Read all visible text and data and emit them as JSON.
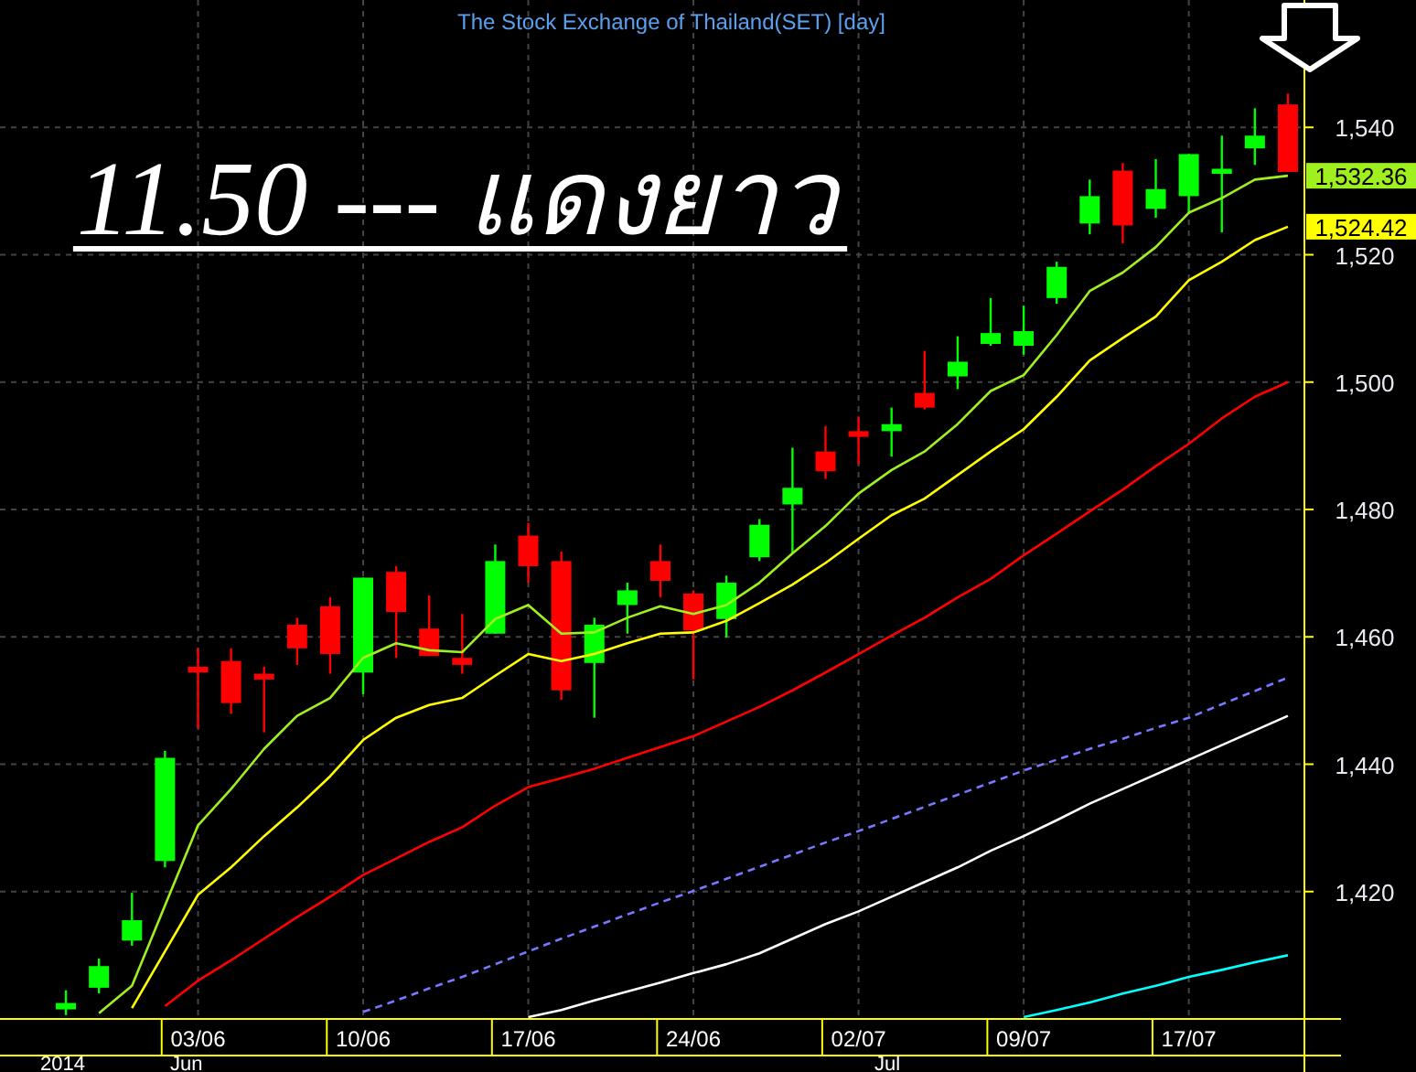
{
  "chart_data": {
    "type": "candlestick",
    "title": "The Stock Exchange of Thailand(SET) [day]",
    "categories": [
      null,
      null,
      null,
      null,
      "03/06",
      null,
      null,
      null,
      null,
      "10/06",
      null,
      null,
      null,
      null,
      "17/06",
      null,
      null,
      null,
      null,
      "24/06",
      null,
      null,
      null,
      null,
      "02/07",
      null,
      null,
      null,
      null,
      "09/07",
      null,
      null,
      null,
      null,
      "17/07",
      null,
      null,
      null
    ],
    "ohlc": [
      [
        1401.5,
        1404.5,
        1400.6,
        1402.5
      ],
      [
        1404.9,
        1409.5,
        1404,
        1408.3
      ],
      [
        1412.3,
        1419.8,
        1411.5,
        1415.5
      ],
      [
        1424.8,
        1442.1,
        1423.8,
        1441
      ],
      [
        1455.3,
        1458.2,
        1445.6,
        1454.4
      ],
      [
        1456.2,
        1458.2,
        1447.9,
        1449.6
      ],
      [
        1454.2,
        1455.3,
        1445,
        1453.3
      ],
      [
        1461.9,
        1463,
        1455.6,
        1458.2
      ],
      [
        1464.8,
        1466.2,
        1454.2,
        1457.3
      ],
      [
        1454.4,
        1469.3,
        1451,
        1469.3
      ],
      [
        1470.2,
        1471.1,
        1456.7,
        1463.9
      ],
      [
        1461.3,
        1466.5,
        1457,
        1457
      ],
      [
        1456.7,
        1463.6,
        1454.2,
        1455.6
      ],
      [
        1460.5,
        1474.5,
        1460.5,
        1471.9
      ],
      [
        1475.9,
        1477.9,
        1468.5,
        1471.1
      ],
      [
        1471.9,
        1473.4,
        1450.1,
        1451.6
      ],
      [
        1455.9,
        1463,
        1447.3,
        1461.9
      ],
      [
        1465,
        1468.5,
        1460.5,
        1467.3
      ],
      [
        1471.9,
        1474.5,
        1466.2,
        1468.8
      ],
      [
        1466.8,
        1467.3,
        1453.3,
        1461
      ],
      [
        1462.8,
        1469.6,
        1459.9,
        1468.5
      ],
      [
        1472.5,
        1478.5,
        1471.9,
        1477.6
      ],
      [
        1480.8,
        1489.7,
        1473.1,
        1483.4
      ],
      [
        1489.1,
        1493.1,
        1484.8,
        1486
      ],
      [
        1492.3,
        1494.6,
        1487.1,
        1491.4
      ],
      [
        1492.3,
        1496,
        1488.3,
        1493.4
      ],
      [
        1498.3,
        1504.9,
        1495.7,
        1496
      ],
      [
        1500.9,
        1507.2,
        1498.9,
        1503.2
      ],
      [
        1506,
        1513.2,
        1505.7,
        1507.7
      ],
      [
        1505.7,
        1512,
        1504.3,
        1508
      ],
      [
        1513.2,
        1518.9,
        1512.3,
        1518.1
      ],
      [
        1524.9,
        1531.8,
        1523.2,
        1529.2
      ],
      [
        1533.2,
        1534.4,
        1521.8,
        1524.6
      ],
      [
        1527.2,
        1535,
        1525.8,
        1530.3
      ],
      [
        1529.2,
        1535.8,
        1526.4,
        1535.8
      ],
      [
        1532.7,
        1538.7,
        1523.5,
        1533.5
      ],
      [
        1536.7,
        1543,
        1534.1,
        1538.7
      ],
      [
        1543.6,
        1545.3,
        1533,
        1533
      ]
    ],
    "colors": [
      "#00ff00",
      "#00ff00",
      "#00ff00",
      "#00ff00",
      "#ff0000",
      "#ff0000",
      "#ff0000",
      "#ff0000",
      "#ff0000",
      "#00ff00",
      "#ff0000",
      "#ff0000",
      "#ff0000",
      "#00ff00",
      "#ff0000",
      "#ff0000",
      "#00ff00",
      "#00ff00",
      "#ff0000",
      "#ff0000",
      "#00ff00",
      "#00ff00",
      "#00ff00",
      "#ff0000",
      "#ff0000",
      "#00ff00",
      "#ff0000",
      "#00ff00",
      "#00ff00",
      "#00ff00",
      "#00ff00",
      "#00ff00",
      "#ff0000",
      "#00ff00",
      "#00ff00",
      "#00ff00",
      "#00ff00",
      "#ff0000"
    ],
    "series": [
      {
        "type": "line",
        "color": "#a0f020",
        "values": [
          null,
          1400.9,
          1405.2,
          1417.8,
          1430.4,
          1436.1,
          1442.4,
          1447.6,
          1450.4,
          1456.7,
          1459,
          1457.9,
          1457.6,
          1462.8,
          1465,
          1460.5,
          1460.7,
          1463,
          1464.8,
          1463.6,
          1465,
          1468.5,
          1473.1,
          1477.4,
          1482.5,
          1486.2,
          1489.1,
          1493.4,
          1498.6,
          1501.1,
          1507.4,
          1514.3,
          1517.2,
          1521.2,
          1526.6,
          1528.9,
          1531.8,
          1532.4
        ]
      },
      {
        "type": "line",
        "color": "#ffff00",
        "values": [
          null,
          null,
          1401.7,
          1410.6,
          1419.5,
          1423.8,
          1428.7,
          1433.2,
          1438.1,
          1443.8,
          1447.3,
          1449.3,
          1450.4,
          1453.9,
          1457.3,
          1456.2,
          1457.3,
          1459,
          1460.5,
          1460.7,
          1462.5,
          1465.3,
          1468.2,
          1471.6,
          1475.4,
          1479.1,
          1481.7,
          1485.4,
          1489.1,
          1492.6,
          1497.7,
          1503.4,
          1506.9,
          1510.3,
          1516,
          1518.9,
          1522.3,
          1524.4
        ]
      },
      {
        "type": "line",
        "color": "#ff0000",
        "values": [
          null,
          null,
          null,
          1402,
          1406,
          1409.2,
          1412.6,
          1416,
          1419.2,
          1422.6,
          1425.2,
          1427.8,
          1430.1,
          1433.5,
          1436.4,
          1437.8,
          1439.3,
          1441,
          1442.7,
          1444.4,
          1446.7,
          1449,
          1451.6,
          1454.4,
          1457.3,
          1460.2,
          1463,
          1466.2,
          1469.1,
          1472.8,
          1476.2,
          1479.7,
          1483.1,
          1486.8,
          1490.3,
          1494.3,
          1497.7,
          1500
        ]
      },
      {
        "type": "line",
        "color": "#7777ff",
        "line_style": "dashed",
        "values": [
          null,
          null,
          null,
          null,
          null,
          null,
          null,
          null,
          null,
          1401.1,
          1402.9,
          1404.8,
          1406.6,
          1408.6,
          1410.6,
          1412.6,
          1414.5,
          1416.4,
          1418.3,
          1420.1,
          1422,
          1423.9,
          1425.8,
          1427.7,
          1429.5,
          1431.4,
          1433.3,
          1435.2,
          1437.1,
          1439,
          1440.7,
          1442.4,
          1444,
          1445.7,
          1447.3,
          1449.4,
          1451.5,
          1453.6
        ]
      },
      {
        "type": "line",
        "color": "#ffffff",
        "values": [
          null,
          null,
          null,
          null,
          null,
          null,
          null,
          null,
          null,
          null,
          null,
          null,
          null,
          null,
          1400.3,
          1401.4,
          1402.9,
          1404.3,
          1405.7,
          1407.2,
          1408.6,
          1410.3,
          1412.6,
          1414.9,
          1416.9,
          1419.2,
          1421.5,
          1423.8,
          1426.4,
          1428.7,
          1431.2,
          1433.8,
          1436.1,
          1438.4,
          1440.7,
          1443,
          1445.3,
          1447.6
        ]
      },
      {
        "type": "line",
        "color": "#00ffff",
        "values": [
          null,
          null,
          null,
          null,
          null,
          null,
          null,
          null,
          null,
          null,
          null,
          null,
          null,
          null,
          null,
          null,
          null,
          null,
          null,
          null,
          null,
          null,
          null,
          null,
          null,
          null,
          null,
          null,
          null,
          1400.3,
          1401.4,
          1402.6,
          1404,
          1405.2,
          1406.6,
          1407.7,
          1408.9,
          1410
        ]
      }
    ],
    "ylim": [
      1400,
      1560
    ],
    "yticks": [
      {
        "value": 1420,
        "label": "1,420"
      },
      {
        "value": 1440,
        "label": "1,440"
      },
      {
        "value": 1460,
        "label": "1,460"
      },
      {
        "value": 1480,
        "label": "1,480"
      },
      {
        "value": 1500,
        "label": "1,500"
      },
      {
        "value": 1520,
        "label": "1,520"
      },
      {
        "value": 1540,
        "label": "1,540"
      }
    ],
    "grid": true,
    "annotations": [
      "11.50 --- แดงยาว",
      "2014",
      "Jun",
      "Jul",
      "1,532.36",
      "1,524.42"
    ]
  }
}
